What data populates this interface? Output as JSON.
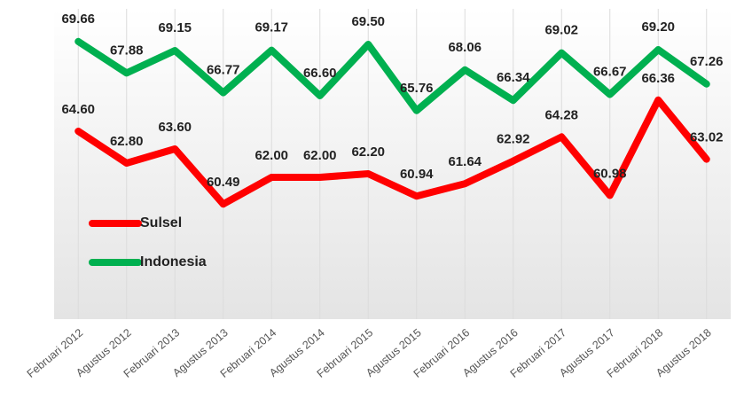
{
  "chart_data": {
    "type": "line",
    "categories": [
      "Februari 2012",
      "Agustus 2012",
      "Februari 2013",
      "Agustus 2013",
      "Februari 2014",
      "Agustus 2014",
      "Februari 2015",
      "Agustus 2015",
      "Februari 2016",
      "Agustus 2016",
      "Februari 2017",
      "Agustus 2017",
      "Februari 2018",
      "Agustus 2018"
    ],
    "series": [
      {
        "name": "Sulsel",
        "color": "#ff0000",
        "values": [
          64.6,
          62.8,
          63.6,
          60.49,
          62.0,
          62.0,
          62.2,
          60.94,
          61.64,
          62.92,
          64.28,
          60.98,
          66.36,
          63.02
        ],
        "value_labels": [
          "64.60",
          "62.80",
          "63.60",
          "60.49",
          "62.00",
          "62.00",
          "62.20",
          "60.94",
          "61.64",
          "62.92",
          "64.28",
          "60.98",
          "66.36",
          "63.02"
        ]
      },
      {
        "name": "Indonesia",
        "color": "#00b050",
        "values": [
          69.66,
          67.88,
          69.15,
          66.77,
          69.17,
          66.6,
          69.5,
          65.76,
          68.06,
          66.34,
          69.02,
          66.67,
          69.2,
          67.26
        ],
        "value_labels": [
          "69.66",
          "67.88",
          "69.15",
          "66.77",
          "69.17",
          "66.60",
          "69.50",
          "65.76",
          "68.06",
          "66.34",
          "69.02",
          "66.67",
          "69.20",
          "67.26"
        ]
      }
    ],
    "ylim": [
      54,
      71.5
    ],
    "legend": "left"
  }
}
